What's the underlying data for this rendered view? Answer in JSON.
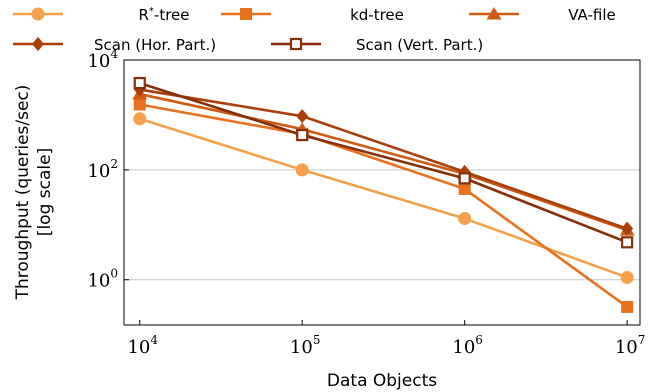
{
  "chart_data": {
    "type": "line",
    "title": "",
    "xlabel": "Data Objects",
    "ylabel": "Throughput (queries/sec)",
    "ylabel_line2": "[log scale]",
    "x_scale": "log",
    "y_scale": "log",
    "x": [
      10000,
      100000,
      1000000,
      10000000
    ],
    "x_tick_values": [
      10000,
      100000,
      1000000,
      10000000
    ],
    "x_ticks": [
      {
        "base": "10",
        "exp": "4"
      },
      {
        "base": "10",
        "exp": "5"
      },
      {
        "base": "10",
        "exp": "6"
      },
      {
        "base": "10",
        "exp": "7"
      }
    ],
    "y_tick_values": [
      1,
      100,
      10000
    ],
    "y_ticks": [
      {
        "base": "10",
        "exp": "0"
      },
      {
        "base": "10",
        "exp": "2"
      },
      {
        "base": "10",
        "exp": "4"
      }
    ],
    "xlim": [
      8000,
      12000000
    ],
    "ylim": [
      0.15,
      10000
    ],
    "grid": "horizontal",
    "legend_position": "top",
    "series": [
      {
        "name": "R*-tree",
        "label_base": "R",
        "label_sup": "*",
        "label_rest": "-tree",
        "color": "#f5a04a",
        "marker": "circle",
        "values": [
          850,
          100,
          13,
          1.1
        ]
      },
      {
        "name": "kd-tree",
        "color": "#e8711f",
        "marker": "square",
        "values": [
          1550,
          450,
          45,
          0.32
        ]
      },
      {
        "name": "VA-file",
        "color": "#cf5a12",
        "marker": "triangle",
        "values": [
          2400,
          550,
          85,
          8
        ]
      },
      {
        "name": "Scan (Hor. Part.)",
        "color": "#a8400c",
        "marker": "diamond",
        "values": [
          2900,
          950,
          92,
          8.5
        ]
      },
      {
        "name": "Scan (Vert. Part.)",
        "color": "#862e08",
        "marker": "square-open",
        "values": [
          3800,
          430,
          70,
          4.8
        ]
      }
    ]
  }
}
